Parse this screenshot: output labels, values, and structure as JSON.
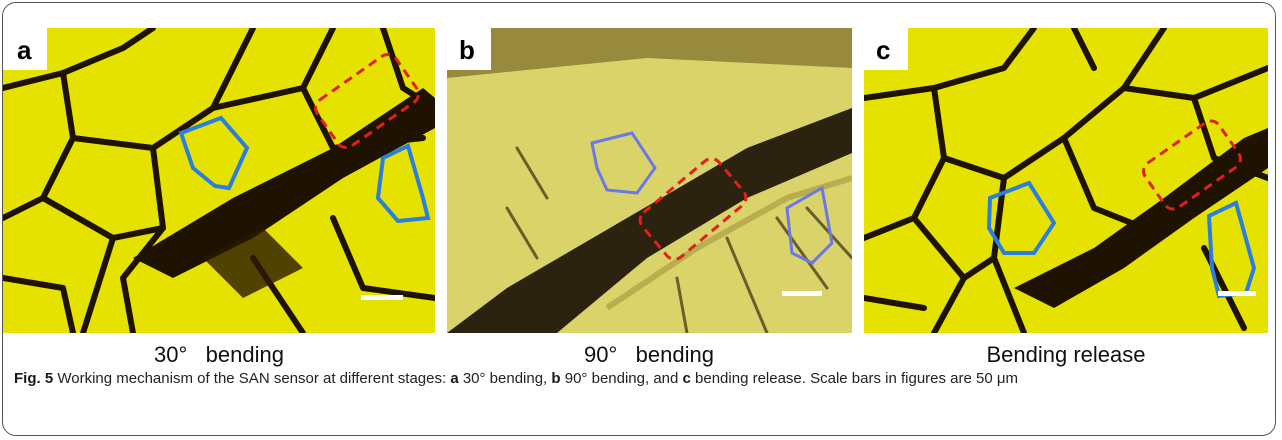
{
  "panels": [
    {
      "label": "a",
      "caption": "30°   bending"
    },
    {
      "label": "b",
      "caption": "90°   bending"
    },
    {
      "label": "c",
      "caption": "Bending release"
    }
  ],
  "figure_caption": {
    "parts": [
      "Fig. 5",
      " Working mechanism of the SAN sensor at different stages: ",
      "a",
      " 30° bending, ",
      "b",
      " 90° bending, and ",
      "c",
      " bending release. Scale bars in figures are 50 μm"
    ]
  }
}
